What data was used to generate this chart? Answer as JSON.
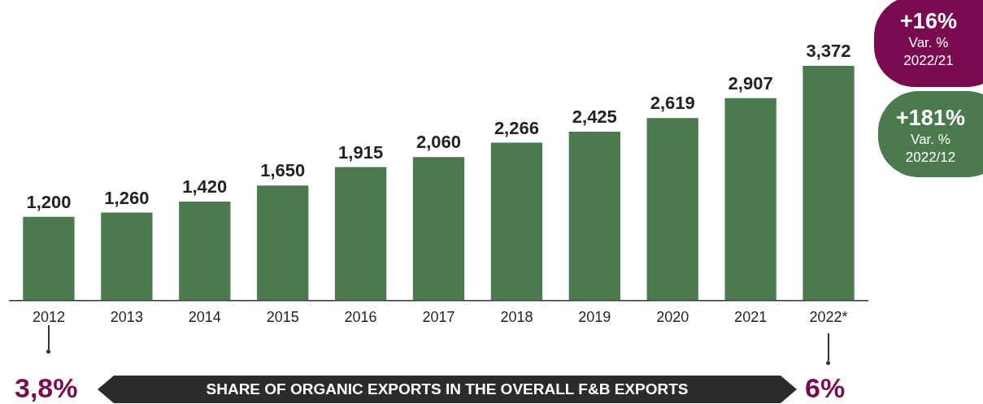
{
  "chart_data": {
    "type": "bar",
    "categories": [
      "2012",
      "2013",
      "2014",
      "2015",
      "2016",
      "2017",
      "2018",
      "2019",
      "2020",
      "2021",
      "2022*"
    ],
    "values": [
      1200,
      1260,
      1420,
      1650,
      1915,
      2060,
      2266,
      2425,
      2619,
      2907,
      3372
    ],
    "color": "#4a7a4d",
    "value_labels": [
      "1,200",
      "1,260",
      "1,420",
      "1,650",
      "1,915",
      "2,060",
      "2,266",
      "2,425",
      "2,619",
      "2,907",
      "3,372"
    ],
    "grid": false,
    "legend": false,
    "tick_labels": "x",
    "annotations": [
      "+16%",
      "Var. % 2022/21",
      "+181%",
      "Var. % 2022/12",
      "3,8%",
      "SHARE OF ORGANIC EXPORTS IN THE OVERALL F&B EXPORTS",
      "6%"
    ]
  }
}
